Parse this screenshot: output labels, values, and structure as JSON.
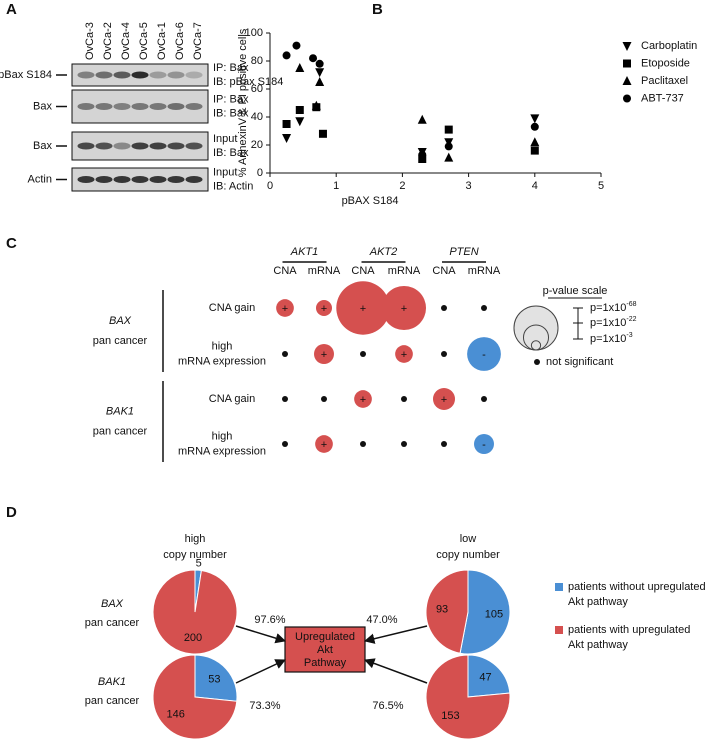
{
  "panels": [
    "A",
    "B",
    "C",
    "D"
  ],
  "blot": {
    "lanes": [
      "OvCa-3",
      "OvCa-2",
      "OvCa-4",
      "OvCa-5",
      "OvCa-1",
      "OvCa-6",
      "OvCa-7"
    ],
    "rows": [
      {
        "label": "pBax S184",
        "ip": "IP: Bax",
        "ib": "IB: pBax S184"
      },
      {
        "label": "Bax",
        "ip": "IP: Bax",
        "ib": "IB: Bax"
      },
      {
        "label": "Bax",
        "ip": "Input",
        "ib": "IB: Bax"
      },
      {
        "label": "Actin",
        "ip": "Input",
        "ib": "IB: Actin"
      }
    ]
  },
  "chart_data": [
    {
      "type": "scatter",
      "xlabel": "pBAX S184",
      "ylabel": "% AnnexinV & PI positive cells",
      "xlim": [
        0,
        5
      ],
      "xticks": [
        0,
        1,
        2,
        3,
        4,
        5
      ],
      "ylim": [
        0,
        100
      ],
      "yticks": [
        0,
        20,
        40,
        60,
        80,
        100
      ],
      "series": [
        {
          "name": "Carboplatin",
          "marker": "triangle-down",
          "color": "#000000",
          "x": [
            0.25,
            0.45,
            0.75,
            2.3,
            2.7,
            4.0
          ],
          "values": [
            25,
            37,
            72,
            15,
            22,
            39
          ]
        },
        {
          "name": "Etoposide",
          "marker": "square",
          "color": "#000000",
          "x": [
            0.25,
            0.45,
            0.7,
            0.8,
            2.3,
            2.7,
            4.0
          ],
          "values": [
            35,
            45,
            47,
            28,
            10,
            31,
            16
          ]
        },
        {
          "name": "Paclitaxel",
          "marker": "triangle-up",
          "color": "#000000",
          "x": [
            0.45,
            0.7,
            0.75,
            2.3,
            2.7,
            4.0
          ],
          "values": [
            75,
            48,
            65,
            38,
            11,
            22
          ]
        },
        {
          "name": "ABT-737",
          "marker": "circle",
          "color": "#000000",
          "x": [
            0.25,
            0.4,
            0.65,
            0.75,
            2.3,
            2.7,
            4.0
          ],
          "values": [
            84,
            91,
            82,
            78,
            13,
            19,
            33
          ]
        }
      ]
    },
    {
      "type": "pie",
      "categories": [
        [
          "patients without upregulated",
          "Akt pathway"
        ],
        [
          "patients with upregulated",
          "Akt pathway"
        ]
      ],
      "colors": [
        "#4a8fd4",
        "#d5504f"
      ],
      "column_titles": [
        [
          "high",
          "copy number"
        ],
        [
          "low",
          "copy number"
        ]
      ],
      "row_titles": [
        {
          "gene": "BAX",
          "label": "pan cancer"
        },
        {
          "gene": "BAK1",
          "label": "pan cancer"
        }
      ],
      "center_label": [
        "Upregulated",
        "Akt",
        "Pathway"
      ],
      "pies": [
        {
          "values": [
            5,
            200
          ],
          "arrow_label": "97.6%"
        },
        {
          "values": [
            105,
            93
          ],
          "arrow_label": "47.0%"
        },
        {
          "values": [
            53,
            146
          ],
          "arrow_label": "73.3%"
        },
        {
          "values": [
            47,
            153
          ],
          "arrow_label": "76.5%"
        }
      ]
    }
  ],
  "bubble": {
    "colors": {
      "+": "#d5504f",
      "-": "#4a8fd4"
    },
    "column_groups": [
      {
        "label": "AKT1",
        "sub": [
          "CNA",
          "mRNA"
        ]
      },
      {
        "label": "AKT2",
        "sub": [
          "CNA",
          "mRNA"
        ]
      },
      {
        "label": "PTEN",
        "sub": [
          "CNA",
          "mRNA"
        ]
      }
    ],
    "row_groups": [
      {
        "gene": "BAX",
        "label": "pan cancer",
        "rows": [
          {
            "label_lines": [
              "CNA gain"
            ],
            "cells": [
              {
                "sign": "+",
                "neg_log10_p": 11
              },
              {
                "sign": "+",
                "neg_log10_p": 9
              },
              {
                "sign": "+",
                "neg_log10_p": 100
              },
              {
                "sign": "+",
                "neg_log10_p": 68
              },
              null,
              null
            ]
          },
          {
            "label_lines": [
              "high",
              "mRNA expression"
            ],
            "cells": [
              null,
              {
                "sign": "+",
                "neg_log10_p": 14
              },
              null,
              {
                "sign": "+",
                "neg_log10_p": 11
              },
              null,
              {
                "sign": "-",
                "neg_log10_p": 40
              }
            ]
          }
        ]
      },
      {
        "gene": "BAK1",
        "label": "pan cancer",
        "rows": [
          {
            "label_lines": [
              "CNA gain"
            ],
            "cells": [
              null,
              null,
              {
                "sign": "+",
                "neg_log10_p": 11
              },
              null,
              {
                "sign": "+",
                "neg_log10_p": 17
              },
              null
            ]
          },
          {
            "label_lines": [
              "high",
              "mRNA expression"
            ],
            "cells": [
              null,
              {
                "sign": "+",
                "neg_log10_p": 11
              },
              null,
              null,
              null,
              {
                "sign": "-",
                "neg_log10_p": 14
              }
            ]
          }
        ]
      }
    ],
    "legend": {
      "title": "p-value scale",
      "items": [
        {
          "value": 68,
          "label_base": "p=1x10",
          "label_exp": "-68"
        },
        {
          "value": 22,
          "label_base": "p=1x10",
          "label_exp": "-22"
        },
        {
          "value": 3,
          "label_base": "p=1x10",
          "label_exp": "-3"
        }
      ],
      "not_significant": "not significant"
    }
  }
}
